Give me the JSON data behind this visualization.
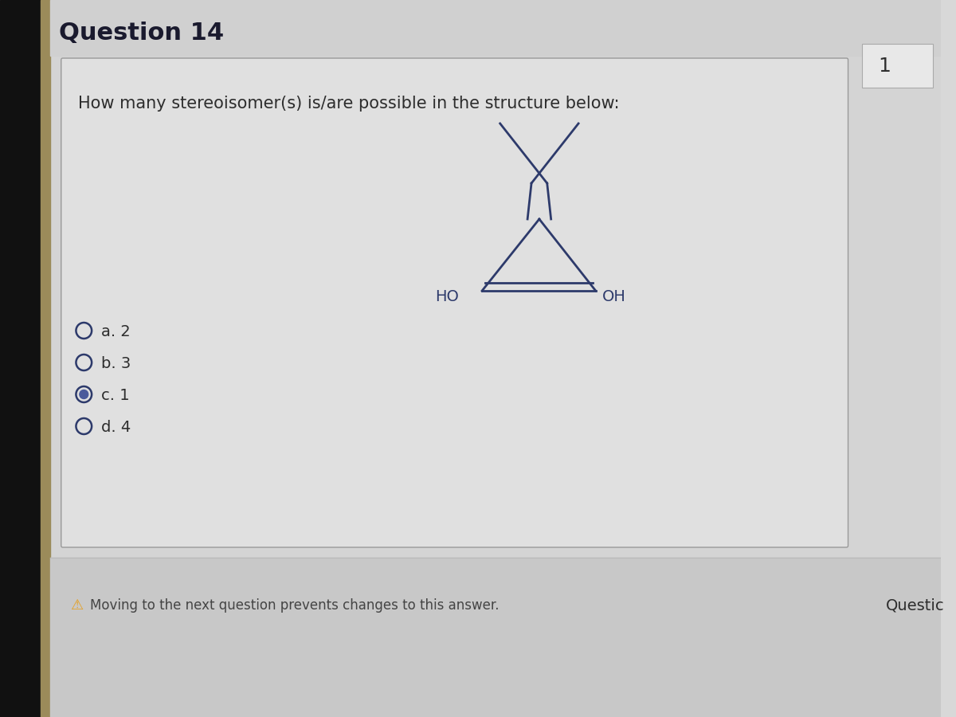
{
  "title": "Question 14",
  "question_text": "How many stereoisomer(s) is/are possible in the structure below:",
  "options": [
    {
      "label": "a. 2",
      "selected": false
    },
    {
      "label": "b. 3",
      "selected": false
    },
    {
      "label": "c. 1",
      "selected": true
    },
    {
      "label": "d. 4",
      "selected": false
    }
  ],
  "footer_text": "Moving to the next question prevents changes to this answer.",
  "footer_right": "Questic",
  "top_right": "1",
  "bg_color": "#c8c8c8",
  "main_bg": "#d8d8d8",
  "panel_color": "#e2e2e2",
  "left_black": "#111111",
  "left_bar_color": "#9B8B5A",
  "line_color": "#2d3a6b",
  "text_color": "#2d2d2d",
  "title_color": "#1a1a2e",
  "radio_color": "#2d3a6b",
  "selected_fill": "#4a5a9b",
  "warning_color": "#e6a020"
}
